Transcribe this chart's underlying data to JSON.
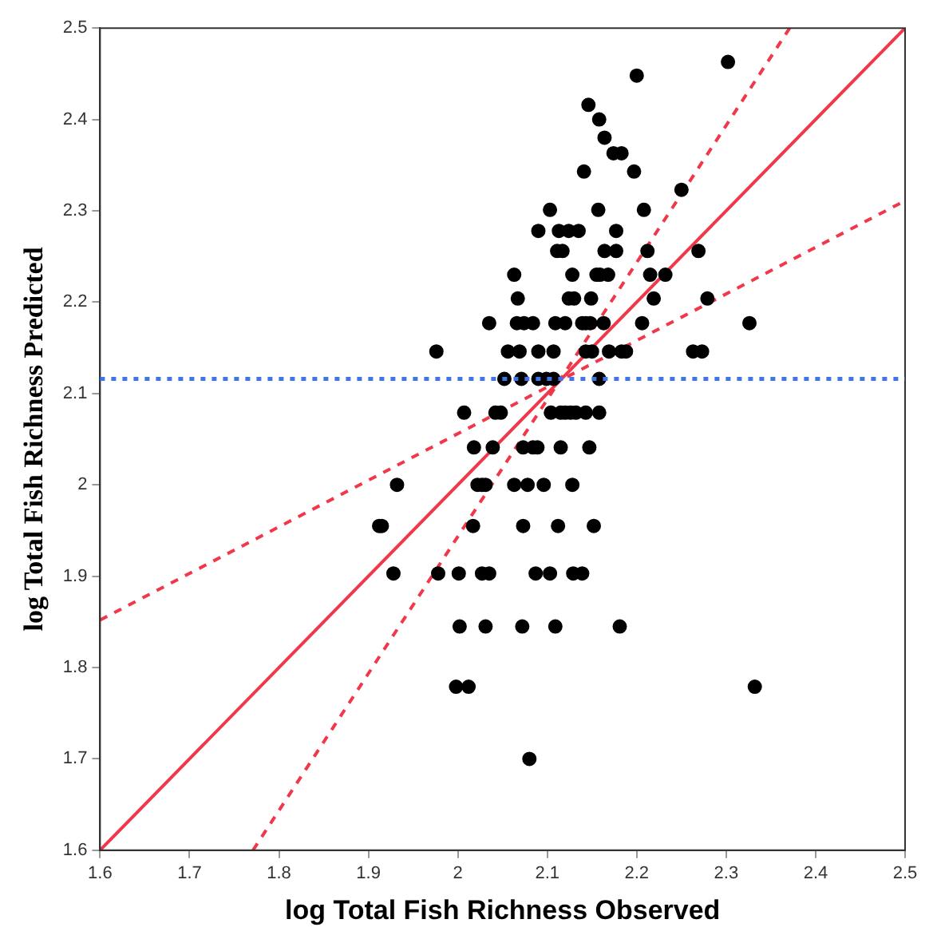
{
  "chart_data": {
    "type": "scatter",
    "xlabel": "log Total Fish Richness Observed",
    "ylabel": "log Total Fish Richness Predicted",
    "xlim": [
      1.6,
      2.5
    ],
    "ylim": [
      1.6,
      2.5
    ],
    "xticks": [
      1.6,
      1.7,
      1.8,
      1.9,
      {
        "value": 2.0,
        "label": "2"
      },
      2.1,
      2.2,
      2.3,
      2.4,
      2.5
    ],
    "yticks": [
      1.6,
      1.7,
      1.8,
      1.9,
      {
        "value": 2.0,
        "label": "2"
      },
      2.1,
      2.2,
      2.3,
      2.4,
      2.5
    ],
    "grid": false,
    "legend": false,
    "series": [
      {
        "color": "#000000",
        "marker": "circle",
        "x": [
          2.302,
          2.2,
          2.146,
          2.158,
          2.164,
          2.174,
          2.183,
          2.141,
          2.197,
          2.25,
          2.103,
          2.157,
          2.208,
          2.09,
          2.113,
          2.124,
          2.135,
          2.177,
          2.111,
          2.117,
          2.164,
          2.177,
          2.212,
          2.269,
          2.063,
          2.128,
          2.155,
          2.159,
          2.168,
          2.215,
          2.232,
          2.067,
          2.124,
          2.13,
          2.149,
          2.219,
          2.279,
          2.035,
          2.066,
          2.074,
          2.084,
          2.109,
          2.12,
          2.139,
          2.143,
          2.148,
          2.163,
          2.206,
          2.326,
          1.976,
          2.056,
          2.069,
          2.09,
          2.107,
          2.143,
          2.15,
          2.169,
          2.183,
          2.188,
          2.263,
          2.273,
          2.052,
          2.071,
          2.09,
          2.099,
          2.107,
          2.158,
          2.007,
          2.042,
          2.048,
          2.104,
          2.115,
          2.12,
          2.126,
          2.132,
          2.143,
          2.158,
          2.018,
          2.039,
          2.073,
          2.084,
          2.089,
          2.115,
          2.147,
          1.932,
          2.022,
          2.027,
          2.031,
          2.063,
          2.078,
          2.096,
          2.128,
          1.912,
          1.915,
          2.017,
          2.073,
          2.112,
          2.152,
          1.928,
          1.978,
          2.001,
          2.027,
          2.035,
          2.087,
          2.103,
          2.129,
          2.139,
          2.002,
          2.031,
          2.072,
          2.109,
          2.181,
          1.998,
          2.012,
          2.332,
          2.08
        ],
        "values": [
          2.463,
          2.448,
          2.416,
          2.4,
          2.38,
          2.363,
          2.363,
          2.343,
          2.343,
          2.323,
          2.301,
          2.301,
          2.301,
          2.278,
          2.278,
          2.278,
          2.278,
          2.278,
          2.256,
          2.256,
          2.256,
          2.256,
          2.256,
          2.256,
          2.23,
          2.23,
          2.23,
          2.23,
          2.23,
          2.23,
          2.23,
          2.204,
          2.204,
          2.204,
          2.204,
          2.204,
          2.204,
          2.177,
          2.177,
          2.177,
          2.177,
          2.177,
          2.177,
          2.177,
          2.177,
          2.177,
          2.177,
          2.177,
          2.177,
          2.146,
          2.146,
          2.146,
          2.146,
          2.146,
          2.146,
          2.146,
          2.146,
          2.146,
          2.146,
          2.146,
          2.146,
          2.116,
          2.116,
          2.116,
          2.116,
          2.116,
          2.116,
          2.079,
          2.079,
          2.079,
          2.079,
          2.079,
          2.079,
          2.079,
          2.079,
          2.079,
          2.079,
          2.041,
          2.041,
          2.041,
          2.041,
          2.041,
          2.041,
          2.041,
          2.0,
          2.0,
          2.0,
          2.0,
          2.0,
          2.0,
          2.0,
          2.0,
          1.955,
          1.955,
          1.955,
          1.955,
          1.955,
          1.955,
          1.903,
          1.903,
          1.903,
          1.903,
          1.903,
          1.903,
          1.903,
          1.903,
          1.903,
          1.845,
          1.845,
          1.845,
          1.845,
          1.845,
          1.779,
          1.779,
          1.779,
          1.7
        ]
      },
      {
        "type": "line",
        "color": "#f0384a",
        "marker": "none",
        "line_style": "solid",
        "x": [
          1.6,
          2.5
        ],
        "values": [
          1.6,
          2.5
        ]
      },
      {
        "type": "line",
        "color": "#f0384a",
        "marker": "none",
        "line_style": "dashed",
        "x": [
          1.771,
          2.371
        ],
        "values": [
          1.6,
          2.5
        ]
      },
      {
        "type": "line",
        "color": "#f0384a",
        "marker": "none",
        "line_style": "dashed",
        "x": [
          1.6,
          2.5
        ],
        "values": [
          1.852,
          2.311
        ]
      }
    ],
    "ref_lines": [
      {
        "axis": "y",
        "value": 2.116,
        "color": "#3f73f0",
        "line_style": "dotted"
      }
    ]
  }
}
